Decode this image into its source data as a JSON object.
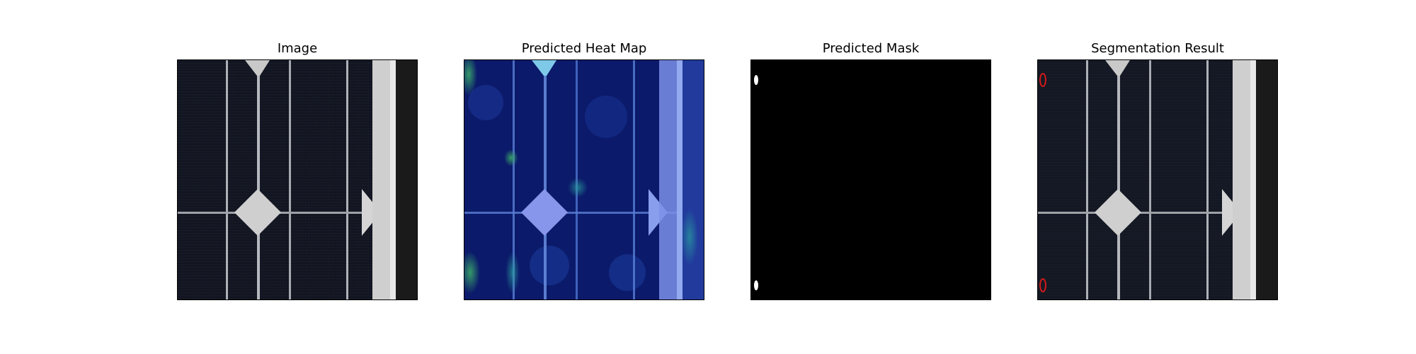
{
  "panels": [
    {
      "title": "Image"
    },
    {
      "title": "Predicted Heat Map"
    },
    {
      "title": "Predicted Mask"
    },
    {
      "title": "Segmentation Result"
    }
  ],
  "colors": {
    "cell_dark": "#141823",
    "busbar": "#c8c8c8",
    "frame_edge": "#d4d4d4",
    "heatmap_base": "#0b1a6e",
    "heatmap_highlight": "#7fa8ff",
    "mask_bg": "#000000",
    "mask_blob": "#ffffff",
    "contour": "#d11a1a"
  }
}
